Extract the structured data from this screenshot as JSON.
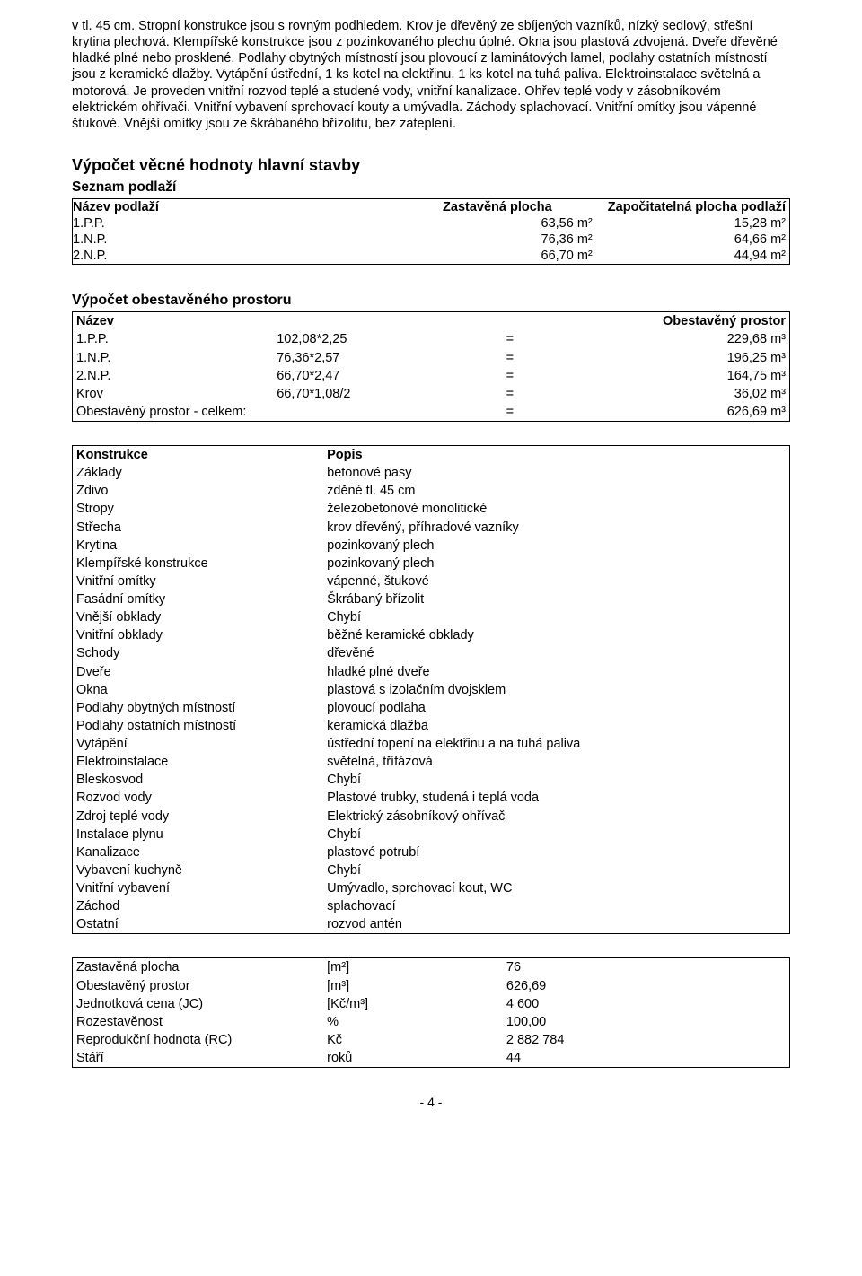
{
  "intro_text": "v tl. 45 cm. Stropní konstrukce jsou s rovným podhledem. Krov je dřevěný ze sbíjených vazníků, nízký sedlový, střešní krytina plechová. Klempířské konstrukce jsou z pozinkovaného plechu úplné. Okna jsou plastová zdvojená. Dveře dřevěné hladké plné nebo prosklené. Podlahy obytných místností jsou plovoucí z laminátových lamel, podlahy ostatních místností jsou z keramické dlažby. Vytápění ústřední, 1 ks kotel na elektřinu, 1 ks kotel na tuhá paliva. Elektroinstalace světelná a motorová. Je proveden vnitřní rozvod teplé a studené vody, vnitřní kanalizace. Ohřev teplé vody v zásobníkovém elektrickém ohřívači. Vnitřní vybavení sprchovací kouty a umývadla. Záchody splachovací. Vnitřní omítky jsou vápenné štukové. Vnější omítky jsou ze škrábaného břízolitu, bez zateplení.",
  "section1_title": "Výpočet věcné hodnoty hlavní stavby",
  "section1_sub": "Seznam podlaží",
  "floors": {
    "head": {
      "c1": "Název podlaží",
      "c2": "Zastavěná plocha",
      "c3": "Započitatelná plocha podlaží"
    },
    "rows": [
      {
        "c1": "1.P.P.",
        "c2": "63,56 m²",
        "c3": "15,28 m²"
      },
      {
        "c1": "1.N.P.",
        "c2": "76,36 m²",
        "c3": "64,66 m²"
      },
      {
        "c1": "2.N.P.",
        "c2": "66,70 m²",
        "c3": "44,94 m²"
      }
    ]
  },
  "section2_title": "Výpočet obestavěného prostoru",
  "obest": {
    "head": {
      "c1": "Název",
      "c4": "Obestavěný prostor"
    },
    "rows": [
      {
        "c1": "1.P.P.",
        "c2": "102,08*2,25",
        "c3": "=",
        "c4": "229,68 m³"
      },
      {
        "c1": "1.N.P.",
        "c2": "76,36*2,57",
        "c3": "=",
        "c4": "196,25 m³"
      },
      {
        "c1": "2.N.P.",
        "c2": "66,70*2,47",
        "c3": "=",
        "c4": "164,75 m³"
      },
      {
        "c1": "Krov",
        "c2": "66,70*1,08/2",
        "c3": "=",
        "c4": "36,02 m³"
      },
      {
        "c1": "Obestavěný prostor - celkem:",
        "c2": "",
        "c3": "=",
        "c4": "626,69 m³"
      }
    ]
  },
  "kp": {
    "head": {
      "c1": "Konstrukce",
      "c2": "Popis"
    },
    "rows": [
      {
        "c1": "Základy",
        "c2": "betonové pasy"
      },
      {
        "c1": "Zdivo",
        "c2": "zděné tl. 45 cm"
      },
      {
        "c1": "Stropy",
        "c2": "železobetonové monolitické"
      },
      {
        "c1": "Střecha",
        "c2": "krov dřevěný, příhradové vazníky"
      },
      {
        "c1": "Krytina",
        "c2": "pozinkovaný plech"
      },
      {
        "c1": "Klempířské konstrukce",
        "c2": "pozinkovaný plech"
      },
      {
        "c1": "Vnitřní omítky",
        "c2": "vápenné, štukové"
      },
      {
        "c1": "Fasádní omítky",
        "c2": "Škrábaný břízolit"
      },
      {
        "c1": "Vnější obklady",
        "c2": "Chybí"
      },
      {
        "c1": "Vnitřní obklady",
        "c2": "běžné keramické obklady"
      },
      {
        "c1": "Schody",
        "c2": "dřevěné"
      },
      {
        "c1": "Dveře",
        "c2": "hladké plné dveře"
      },
      {
        "c1": "Okna",
        "c2": "plastová s izolačním dvojsklem"
      },
      {
        "c1": "Podlahy obytných místností",
        "c2": "plovoucí podlaha"
      },
      {
        "c1": "Podlahy ostatních místností",
        "c2": "keramická dlažba"
      },
      {
        "c1": "Vytápění",
        "c2": "ústřední topení na elektřinu a na tuhá paliva"
      },
      {
        "c1": "Elektroinstalace",
        "c2": "světelná, třífázová"
      },
      {
        "c1": "Bleskosvod",
        "c2": "Chybí"
      },
      {
        "c1": "Rozvod vody",
        "c2": "Plastové trubky, studená i teplá voda"
      },
      {
        "c1": "Zdroj teplé vody",
        "c2": "Elektrický zásobníkový ohřívač"
      },
      {
        "c1": "Instalace plynu",
        "c2": "Chybí"
      },
      {
        "c1": "Kanalizace",
        "c2": "plastové potrubí"
      },
      {
        "c1": "Vybavení kuchyně",
        "c2": "Chybí"
      },
      {
        "c1": "Vnitřní vybavení",
        "c2": "Umývadlo, sprchovací kout, WC"
      },
      {
        "c1": "Záchod",
        "c2": "splachovací"
      },
      {
        "c1": "Ostatní",
        "c2": "rozvod antén"
      }
    ]
  },
  "summary": {
    "rows": [
      {
        "c1": "Zastavěná plocha",
        "c2": "[m²]",
        "c3": "76"
      },
      {
        "c1": "Obestavěný prostor",
        "c2": "[m³]",
        "c3": "626,69"
      },
      {
        "c1": "Jednotková cena (JC)",
        "c2": "[Kč/m³]",
        "c3": "4 600"
      },
      {
        "c1": "Rozestavěnost",
        "c2": "%",
        "c3": "100,00"
      },
      {
        "c1": "Reprodukční hodnota (RC)",
        "c2": "Kč",
        "c3": "2 882 784"
      },
      {
        "c1": "Stáří",
        "c2": "roků",
        "c3": "44"
      }
    ]
  },
  "footer": "- 4 -"
}
